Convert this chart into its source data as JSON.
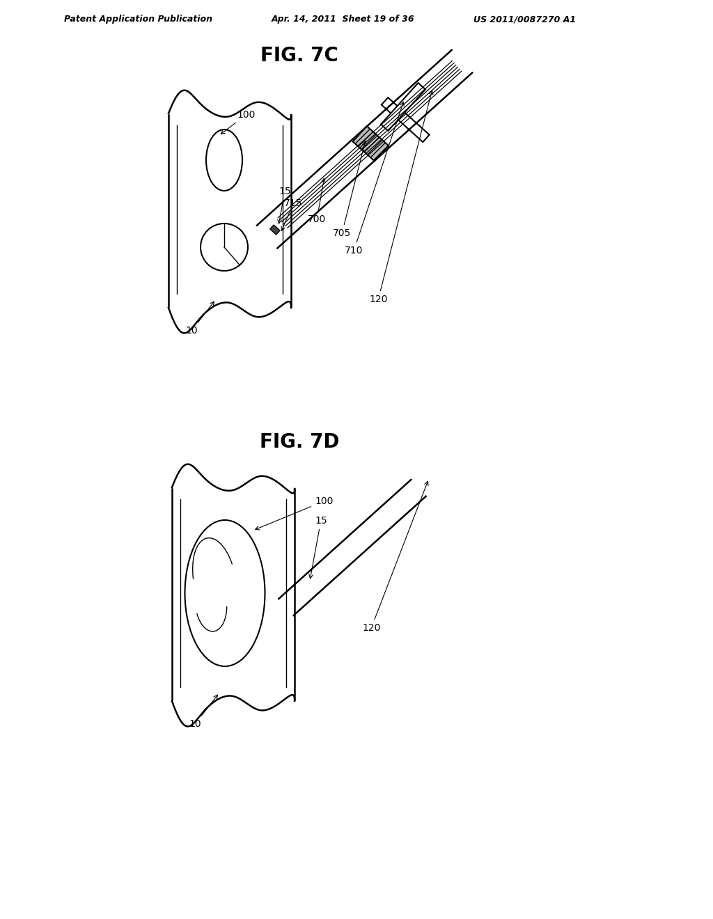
{
  "bg_color": "#ffffff",
  "line_color": "#000000",
  "header_text1": "Patent Application Publication",
  "header_text2": "Apr. 14, 2011  Sheet 19 of 36",
  "header_text3": "US 2011/0087270 A1",
  "fig7c_title": "FIG. 7C",
  "fig7d_title": "FIG. 7D",
  "label_fontsize": 10,
  "title_fontsize": 20,
  "header_fontsize": 9
}
